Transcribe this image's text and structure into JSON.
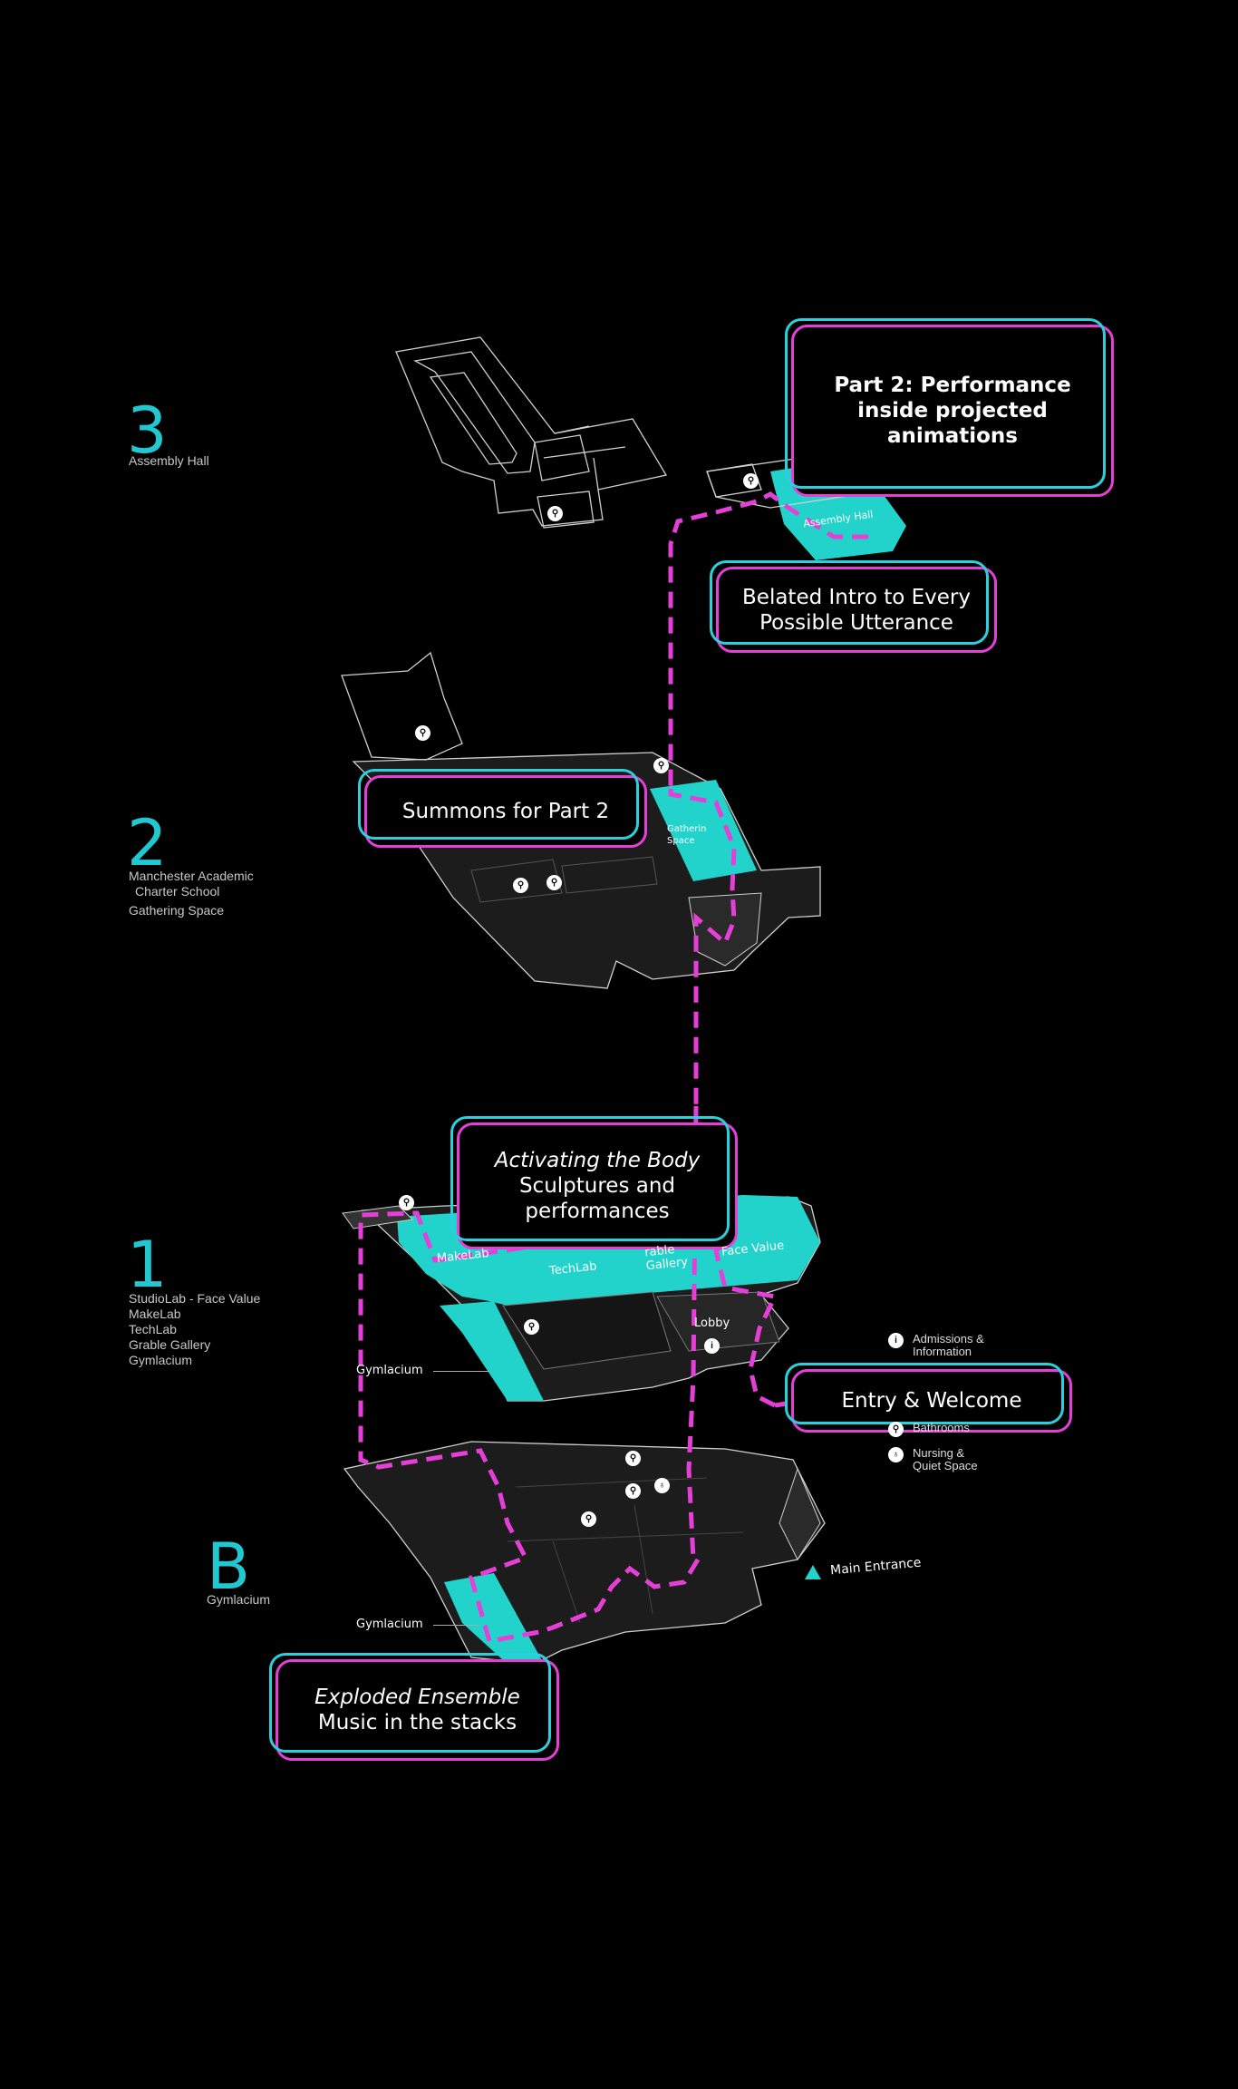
{
  "floors": [
    {
      "number": "3",
      "lines": [
        "Assembly Hall"
      ]
    },
    {
      "number": "2",
      "lines": [
        "Manchester Academic",
        "Charter School",
        "Gathering Space"
      ]
    },
    {
      "number": "1",
      "lines": [
        "StudioLab - Face Value",
        "MakeLab",
        "TechLab",
        "Grable Gallery",
        "Gymlacium"
      ]
    },
    {
      "number": "B",
      "lines": [
        "Gymlacium"
      ]
    }
  ],
  "callouts": {
    "part2": [
      "Part 2: Performance",
      "inside projected",
      "animations"
    ],
    "belated": [
      "Belated Intro to Every",
      "Possible Utterance"
    ],
    "summons": [
      "Summons for Part 2"
    ],
    "activating_em": "Activating the Body",
    "activating": [
      "Sculptures and",
      "performances"
    ],
    "entry": [
      "Entry & Welcome"
    ],
    "exploded_em": "Exploded Ensemble",
    "exploded": [
      "Music in the stacks"
    ]
  },
  "map_labels": {
    "assembly_hall": "Assembly Hall",
    "gathering_space": [
      "Gatherin",
      "Space"
    ],
    "makelab": "MakeLab",
    "techlab": "TechLab",
    "grable_gallery": [
      "rable",
      "Gallery"
    ],
    "face_value": "Face Value",
    "lobby": "Lobby",
    "gymlacium_1": "Gymlacium",
    "gymlacium_b": "Gymlacium",
    "main_entrance": "Main Entrance"
  },
  "legend": [
    {
      "icon": "info-icon",
      "glyph": "i",
      "lines": [
        "Admissions &",
        "Information"
      ]
    },
    {
      "icon": "restroom-icon",
      "glyph": "",
      "lines": [
        "Bathrooms"
      ]
    },
    {
      "icon": "nursing-icon",
      "glyph": "",
      "lines": [
        "Nursing &",
        "Quiet Space"
      ]
    }
  ],
  "colors": {
    "accent_cyan": "#22d3cc",
    "route_magenta": "#e53fd8",
    "floor_fill": "#1e1e1e",
    "outline": "#cfcfcf"
  }
}
